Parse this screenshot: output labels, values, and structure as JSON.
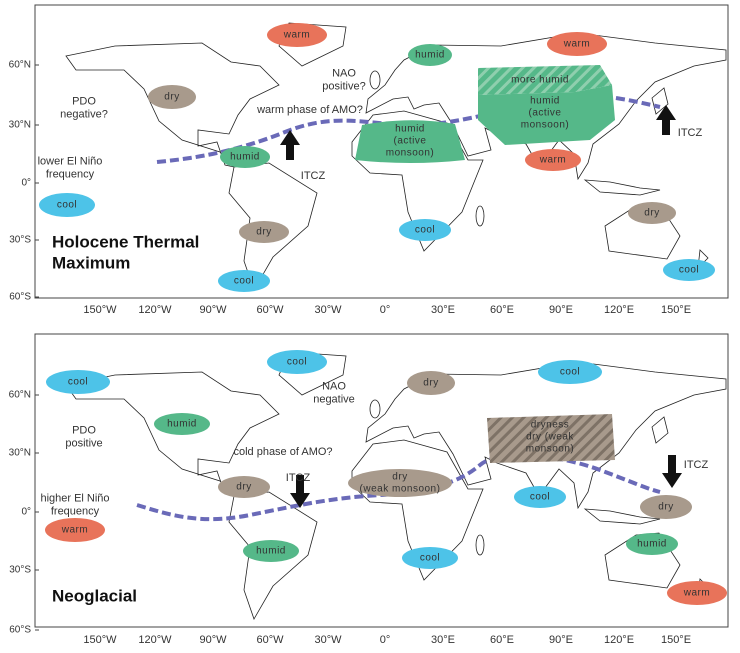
{
  "axes": {
    "lon_labels": [
      "150°W",
      "120°W",
      "90°W",
      "60°W",
      "30°W",
      "0°",
      "30°E",
      "60°E",
      "90°E",
      "120°E",
      "150°E"
    ],
    "lat_labels": [
      "60°N",
      "30°N",
      "0°",
      "30°S",
      "60°S"
    ]
  },
  "panels": [
    {
      "title": [
        "Holocene Thermal",
        "Maximum"
      ],
      "regions": [
        {
          "label": [
            "warm"
          ],
          "kind": "warm"
        },
        {
          "label": [
            "warm"
          ],
          "kind": "warm"
        },
        {
          "label": [
            "humid"
          ],
          "kind": "humid"
        },
        {
          "label": [
            "dry"
          ],
          "kind": "dry"
        },
        {
          "label": [
            "more humid"
          ],
          "kind": "humid-hatched"
        },
        {
          "label": [
            "humid",
            "(active",
            "monsoon)"
          ],
          "kind": "humid"
        },
        {
          "label": [
            "humid",
            "(active",
            "monsoon)"
          ],
          "kind": "humid"
        },
        {
          "label": [
            "humid"
          ],
          "kind": "humid"
        },
        {
          "label": [
            "warm"
          ],
          "kind": "warm"
        },
        {
          "label": [
            "cool"
          ],
          "kind": "cool"
        },
        {
          "label": [
            "dry"
          ],
          "kind": "dry"
        },
        {
          "label": [
            "cool"
          ],
          "kind": "cool"
        },
        {
          "label": [
            "dry"
          ],
          "kind": "dry"
        },
        {
          "label": [
            "cool"
          ],
          "kind": "cool"
        },
        {
          "label": [
            "cool"
          ],
          "kind": "cool"
        }
      ],
      "notes": [
        {
          "text": [
            "PDO",
            "negative?"
          ]
        },
        {
          "text": [
            "NAO",
            "positive?"
          ]
        },
        {
          "text": [
            "warm phase of AMO?"
          ]
        },
        {
          "text": [
            "lower El Niño",
            "frequency"
          ]
        },
        {
          "text": [
            "ITCZ"
          ]
        },
        {
          "text": [
            "ITCZ"
          ]
        }
      ]
    },
    {
      "title": [
        "Neoglacial"
      ],
      "regions": [
        {
          "label": [
            "cool"
          ],
          "kind": "cool"
        },
        {
          "label": [
            "cool"
          ],
          "kind": "cool"
        },
        {
          "label": [
            "dry"
          ],
          "kind": "dry"
        },
        {
          "label": [
            "cool"
          ],
          "kind": "cool"
        },
        {
          "label": [
            "humid"
          ],
          "kind": "humid"
        },
        {
          "label": [
            "dryness",
            "dry (weak",
            "monsoon)"
          ],
          "kind": "dry-hatched"
        },
        {
          "label": [
            "dry"
          ],
          "kind": "dry"
        },
        {
          "label": [
            "dry",
            "(weak monsoon)"
          ],
          "kind": "dry"
        },
        {
          "label": [
            "cool"
          ],
          "kind": "cool"
        },
        {
          "label": [
            "dry"
          ],
          "kind": "dry"
        },
        {
          "label": [
            "warm"
          ],
          "kind": "warm"
        },
        {
          "label": [
            "humid"
          ],
          "kind": "humid"
        },
        {
          "label": [
            "cool"
          ],
          "kind": "cool"
        },
        {
          "label": [
            "humid"
          ],
          "kind": "humid"
        },
        {
          "label": [
            "warm"
          ],
          "kind": "warm"
        }
      ],
      "notes": [
        {
          "text": [
            "NAO",
            "negative"
          ]
        },
        {
          "text": [
            "PDO",
            "positive"
          ]
        },
        {
          "text": [
            "cold phase of AMO?"
          ]
        },
        {
          "text": [
            "ITCZ"
          ]
        },
        {
          "text": [
            "ITCZ"
          ]
        },
        {
          "text": [
            "higher El Niño",
            "frequency"
          ]
        }
      ]
    }
  ]
}
